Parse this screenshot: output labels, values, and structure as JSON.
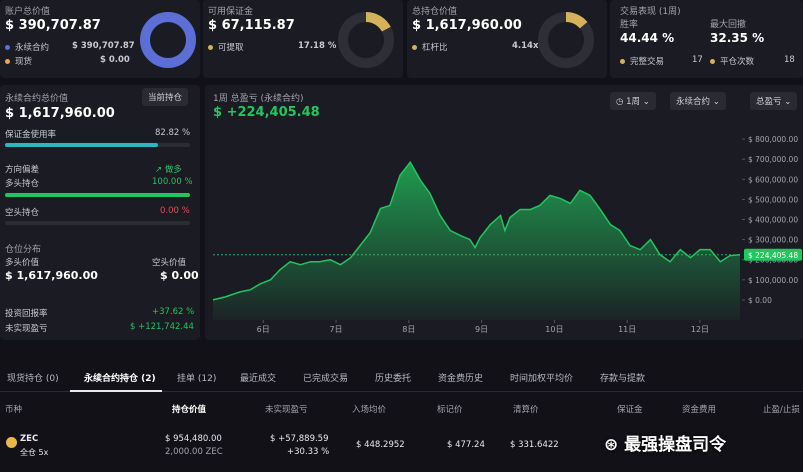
{
  "cards": [
    {
      "title": "账户总价值",
      "value": "$ 390,707.87",
      "items": [
        {
          "label": "永续合约",
          "value": "$ 390,707.87",
          "amount": 390707.87
        },
        {
          "label": "现货",
          "value": "$ 0.00",
          "amount": 0
        }
      ]
    },
    {
      "title": "可用保证金",
      "value": "$ 67,115.87",
      "items": [
        {
          "label": "可提取",
          "value": "17.18 %",
          "amount": 17.18
        }
      ]
    },
    {
      "title": "总持仓价值",
      "value": "$ 1,617,960.00",
      "items": [
        {
          "label": "杠杆比",
          "value": "4.14x"
        }
      ]
    }
  ],
  "performance": {
    "title": "交易表现 (1周)",
    "stats": [
      {
        "label": "胜率",
        "value": "44.44 %"
      },
      {
        "label": "最大回撤",
        "value": "32.35 %"
      }
    ],
    "counts": [
      {
        "label": "完整交易",
        "value": 17
      },
      {
        "label": "平仓次数",
        "value": 18
      }
    ]
  },
  "perp_panel": {
    "title": "永续合约总价值",
    "button": "当前持仓",
    "value": "$ 1,617,960.00",
    "margin_usage": {
      "label": "保证金使用率",
      "value_label": "82.82 %",
      "value": 82.82
    },
    "direction": {
      "label": "方向偏差",
      "value": "做多"
    },
    "long": {
      "label": "多头持仓",
      "value_label": "100.00 %",
      "value": 100
    },
    "short": {
      "label": "空头持仓",
      "value_label": "0.00 %",
      "value": 0
    },
    "distribution": {
      "title": "仓位分布",
      "long_label": "多头价值",
      "short_label": "空头价值",
      "long_value": "$ 1,617,960.00",
      "short_value": "$ 0.00"
    },
    "roi": {
      "label": "投资回报率",
      "value": "+37.62 %"
    },
    "unrealized": {
      "label": "未实现盈亏",
      "value": "$ +121,742.44"
    }
  },
  "chart_data": {
    "type": "area",
    "title": "1周 总盈亏 (永续合约)",
    "subtitle": "$ +224,405.48",
    "controls": [
      "1周",
      "永续合约",
      "总盈亏"
    ],
    "x": [
      5.31,
      5.48,
      5.68,
      5.82,
      5.96,
      6.1,
      6.23,
      6.37,
      6.51,
      6.65,
      6.78,
      6.92,
      7.06,
      7.2,
      7.33,
      7.47,
      7.61,
      7.74,
      7.88,
      8.02,
      8.16,
      8.29,
      8.43,
      8.57,
      8.71,
      8.84,
      8.91,
      8.98,
      9.12,
      9.26,
      9.32,
      9.39,
      9.53,
      9.67,
      9.8,
      9.94,
      10.08,
      10.22,
      10.35,
      10.49,
      10.63,
      10.77,
      10.9,
      11.04,
      11.18,
      11.32,
      11.45,
      11.59,
      11.73,
      11.87,
      12.0,
      12.14,
      12.28,
      12.41,
      12.55
    ],
    "values": [
      0,
      15000,
      40000,
      50000,
      80000,
      100000,
      150000,
      190000,
      175000,
      190000,
      190000,
      200000,
      175000,
      210000,
      270000,
      335000,
      455000,
      470000,
      620000,
      685000,
      595000,
      530000,
      420000,
      345000,
      320000,
      300000,
      260000,
      310000,
      375000,
      420000,
      345000,
      410000,
      450000,
      450000,
      470000,
      520000,
      505000,
      480000,
      545000,
      520000,
      450000,
      375000,
      345000,
      270000,
      250000,
      300000,
      225000,
      190000,
      250000,
      210000,
      250000,
      250000,
      190000,
      220000,
      224405.48
    ],
    "current_value_label": "$ 224,405.48",
    "color": "#22c55e",
    "xlim": [
      5.31,
      12.55
    ],
    "xticks": [
      {
        "value": 6,
        "label": "6日"
      },
      {
        "value": 7,
        "label": "7日"
      },
      {
        "value": 8,
        "label": "8日"
      },
      {
        "value": 9,
        "label": "9日"
      },
      {
        "value": 10,
        "label": "10日"
      },
      {
        "value": 11,
        "label": "11日"
      },
      {
        "value": 12,
        "label": "12日"
      }
    ],
    "ylim": [
      -100000,
      900000
    ],
    "yticks": [
      {
        "value": 0,
        "label": "$ 0.00"
      },
      {
        "value": 100000,
        "label": "$ 100,000.00"
      },
      {
        "value": 200000,
        "label": "$ 200,000.00"
      },
      {
        "value": 300000,
        "label": "$ 300,000.00"
      },
      {
        "value": 400000,
        "label": "$ 400,000.00"
      },
      {
        "value": 500000,
        "label": "$ 500,000.00"
      },
      {
        "value": 600000,
        "label": "$ 600,000.00"
      },
      {
        "value": 700000,
        "label": "$ 700,000.00"
      },
      {
        "value": 800000,
        "label": "$ 800,000.00"
      }
    ],
    "grid": false
  },
  "tabs": [
    "现货持仓 (0)",
    "永续合约持仓 (2)",
    "挂单 (12)",
    "最近成交",
    "已完成交易",
    "历史委托",
    "资金费历史",
    "时间加权平均价",
    "存款与提款"
  ],
  "table": {
    "columns": [
      "币种",
      "持仓价值",
      "未实现盈亏",
      "入场均价",
      "标记价",
      "清算价",
      "保证金",
      "资金费用",
      "止盈/止损"
    ],
    "rows": [
      {
        "coin": "ZEC",
        "mode": "全仓 5x",
        "value": "$ 954,480.00",
        "size": "2,000.00 ZEC",
        "pnl": "$ +57,889.59",
        "pnl_pct": "+30.33 %",
        "entry": "$ 448.2952",
        "mark": "$ 477.24",
        "liq": "$ 331.6422"
      }
    ]
  },
  "watermark": "最强操盘司令"
}
